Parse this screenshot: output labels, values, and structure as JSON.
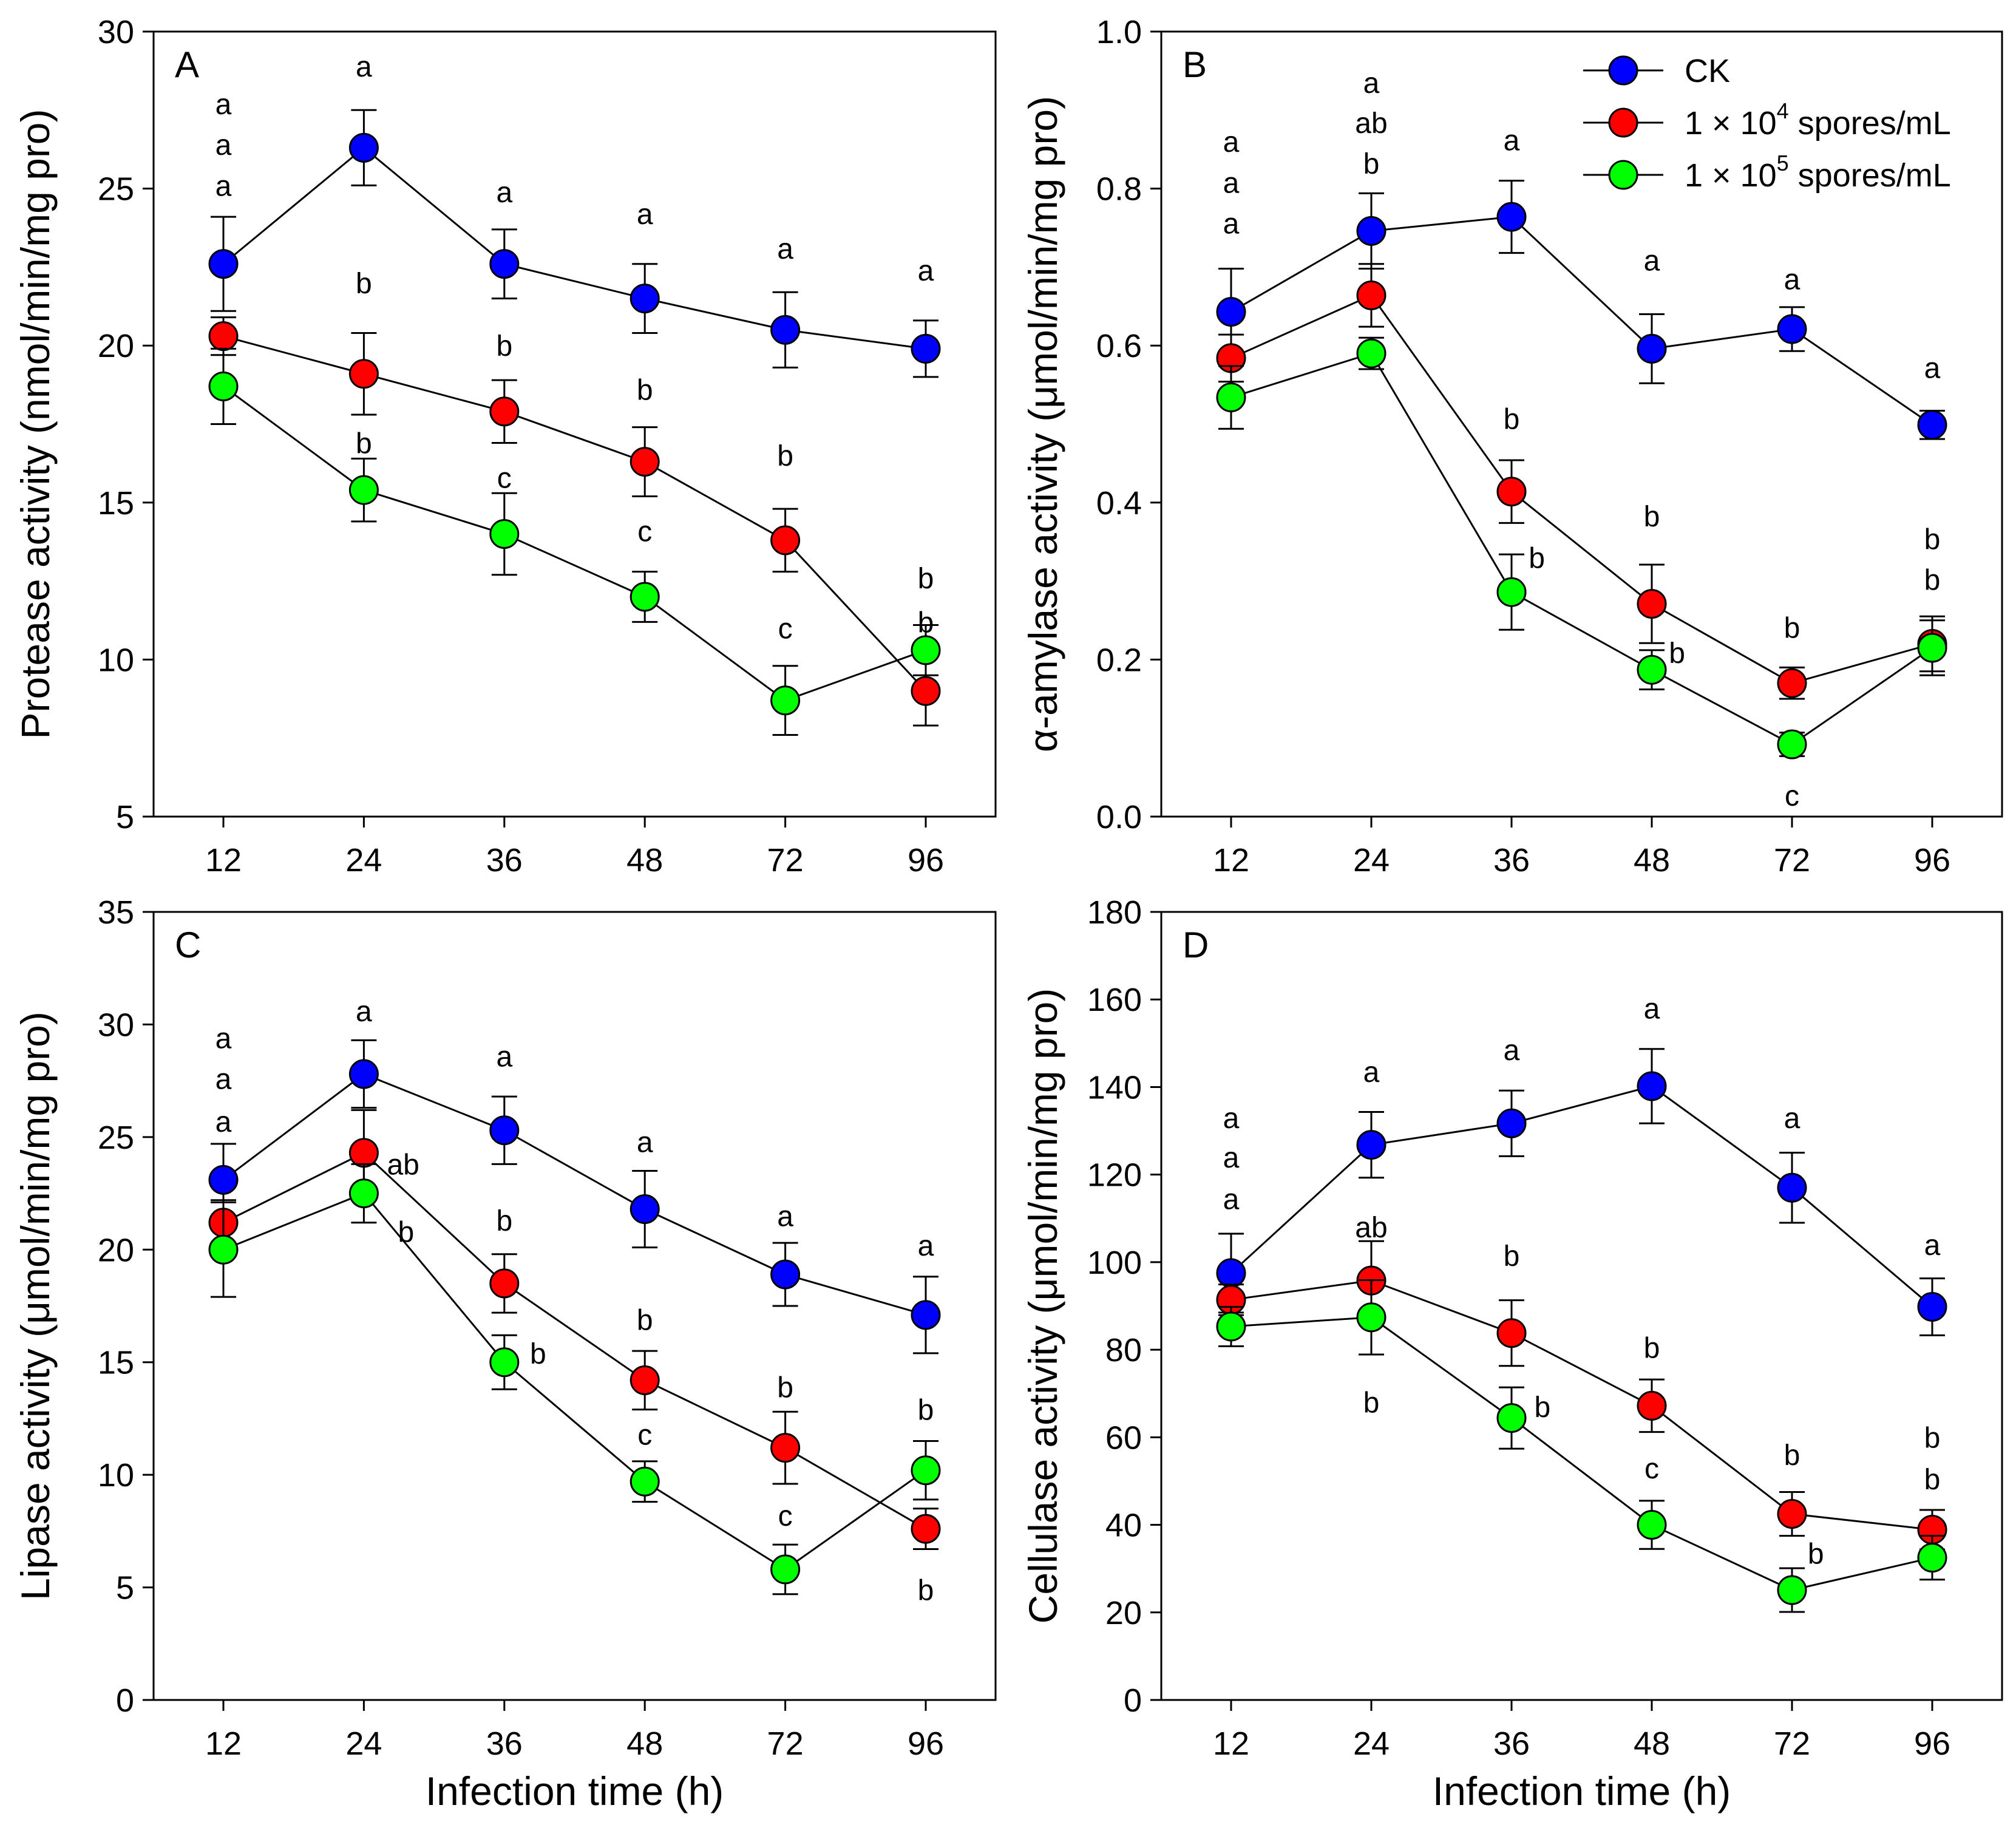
{
  "colors": {
    "ck": "#0000ff",
    "s4": "#ff0000",
    "s5": "#00ff00"
  },
  "legend": {
    "ck": "CK",
    "s4_prefix": "1 × 10",
    "s4_exp": "4",
    "s4_suffix": " spores/mL",
    "s5_prefix": "1 × 10",
    "s5_exp": "5",
    "s5_suffix": " spores/mL"
  },
  "chart_data": [
    {
      "panel": "A",
      "type": "line",
      "title": "",
      "categories": [
        "12",
        "24",
        "36",
        "48",
        "72",
        "96"
      ],
      "xlabel": "",
      "ylabel": "Protease activity (nmol/min/mg pro)",
      "ylim": [
        5,
        30
      ],
      "yticks": [
        5,
        10,
        15,
        20,
        25,
        30
      ],
      "grid": false,
      "series": [
        {
          "name": "CK",
          "key": "ck",
          "values": [
            22.6,
            26.3,
            22.6,
            21.5,
            20.5,
            19.9
          ],
          "errors": [
            1.5,
            1.2,
            1.1,
            1.1,
            1.2,
            0.9
          ]
        },
        {
          "name": "1 × 10^4 spores/mL",
          "key": "s4",
          "values": [
            20.3,
            19.1,
            17.9,
            16.3,
            13.8,
            9.0
          ],
          "errors": [
            0.6,
            1.3,
            1.0,
            1.1,
            1.0,
            1.1
          ]
        },
        {
          "name": "1 × 10^5 spores/mL",
          "key": "s5",
          "values": [
            18.7,
            15.4,
            14.0,
            12.0,
            8.7,
            10.3
          ],
          "errors": [
            1.2,
            1.0,
            1.3,
            0.8,
            1.1,
            0.8
          ]
        }
      ],
      "annotations": [
        {
          "text": "a",
          "x": 0,
          "y": 27.7
        },
        {
          "text": "a",
          "x": 0,
          "y": 26.4
        },
        {
          "text": "a",
          "x": 0,
          "y": 25.1
        },
        {
          "text": "a",
          "x": 1,
          "y": 28.9
        },
        {
          "text": "b",
          "x": 1,
          "y": 22.0
        },
        {
          "text": "b",
          "x": 1,
          "y": 16.9
        },
        {
          "text": "a",
          "x": 2,
          "y": 24.9
        },
        {
          "text": "b",
          "x": 2,
          "y": 20.0
        },
        {
          "text": "c",
          "x": 2,
          "y": 15.8
        },
        {
          "text": "a",
          "x": 3,
          "y": 24.2
        },
        {
          "text": "b",
          "x": 3,
          "y": 18.6
        },
        {
          "text": "c",
          "x": 3,
          "y": 14.1
        },
        {
          "text": "a",
          "x": 4,
          "y": 23.1
        },
        {
          "text": "b",
          "x": 4,
          "y": 16.5
        },
        {
          "text": "c",
          "x": 4,
          "y": 11.0
        },
        {
          "text": "a",
          "x": 5,
          "y": 22.4
        },
        {
          "text": "b",
          "x": 5,
          "y": 12.6
        },
        {
          "text": "b",
          "x": 5,
          "y": 11.2
        }
      ]
    },
    {
      "panel": "B",
      "type": "line",
      "title": "",
      "categories": [
        "12",
        "24",
        "36",
        "48",
        "72",
        "96"
      ],
      "xlabel": "",
      "ylabel": "α-amylase activity (μmol/min/mg pro)",
      "ylim": [
        0.0,
        1.0
      ],
      "yticks": [
        0.0,
        0.2,
        0.4,
        0.6,
        0.8,
        1.0
      ],
      "ytick_decimals": 1,
      "grid": false,
      "series": [
        {
          "name": "CK",
          "key": "ck",
          "values": [
            0.643,
            0.746,
            0.764,
            0.596,
            0.621,
            0.499
          ],
          "errors": [
            0.055,
            0.048,
            0.046,
            0.044,
            0.028,
            0.018
          ]
        },
        {
          "name": "1 × 10^4 spores/mL",
          "key": "s4",
          "values": [
            0.584,
            0.664,
            0.414,
            0.271,
            0.17,
            0.22
          ],
          "errors": [
            0.03,
            0.04,
            0.04,
            0.05,
            0.02,
            0.035
          ]
        },
        {
          "name": "1 × 10^5 spores/mL",
          "key": "s5",
          "values": [
            0.534,
            0.59,
            0.286,
            0.187,
            0.092,
            0.215
          ],
          "errors": [
            0.04,
            0.02,
            0.048,
            0.025,
            0.015,
            0.035
          ]
        }
      ],
      "annotations": [
        {
          "text": "a",
          "x": 0,
          "y": 0.86
        },
        {
          "text": "a",
          "x": 0,
          "y": 0.808
        },
        {
          "text": "a",
          "x": 0,
          "y": 0.756
        },
        {
          "text": "a",
          "x": 1,
          "y": 0.935
        },
        {
          "text": "ab",
          "x": 1,
          "y": 0.884
        },
        {
          "text": "b",
          "x": 1,
          "y": 0.832
        },
        {
          "text": "a",
          "x": 2,
          "y": 0.862
        },
        {
          "text": "a",
          "x": 3,
          "y": 0.709
        },
        {
          "text": "a",
          "x": 4,
          "y": 0.685
        },
        {
          "text": "a",
          "x": 5,
          "y": 0.572
        },
        {
          "text": "b",
          "x": 2,
          "y": 0.507
        },
        {
          "text": "b",
          "x": 2.18,
          "y": 0.33
        },
        {
          "text": "b",
          "x": 3,
          "y": 0.383
        },
        {
          "text": "b",
          "x": 3.18,
          "y": 0.209
        },
        {
          "text": "b",
          "x": 4,
          "y": 0.241
        },
        {
          "text": "c",
          "x": 4,
          "y": 0.027
        },
        {
          "text": "b",
          "x": 5,
          "y": 0.354
        },
        {
          "text": "b",
          "x": 5,
          "y": 0.302
        }
      ]
    },
    {
      "panel": "C",
      "type": "line",
      "title": "",
      "categories": [
        "12",
        "24",
        "36",
        "48",
        "72",
        "96"
      ],
      "xlabel": "Infection time (h)",
      "ylabel": "Lipase activity (μmol/min/mg pro)",
      "ylim": [
        0,
        35
      ],
      "yticks": [
        0,
        5,
        10,
        15,
        20,
        25,
        30,
        35
      ],
      "grid": false,
      "series": [
        {
          "name": "CK",
          "key": "ck",
          "values": [
            23.1,
            27.8,
            25.3,
            21.8,
            18.9,
            17.1
          ],
          "errors": [
            1.6,
            1.5,
            1.5,
            1.7,
            1.4,
            1.7
          ]
        },
        {
          "name": "1 × 10^4 spores/mL",
          "key": "s4",
          "values": [
            21.2,
            24.3,
            18.5,
            14.2,
            11.2,
            7.6
          ],
          "errors": [
            1.0,
            1.9,
            1.3,
            1.3,
            1.6,
            0.9
          ]
        },
        {
          "name": "1 × 10^5 spores/mL",
          "key": "s5",
          "values": [
            20.0,
            22.5,
            15.0,
            9.7,
            5.8,
            10.2
          ],
          "errors": [
            2.1,
            1.3,
            1.2,
            0.9,
            1.1,
            1.3
          ]
        }
      ],
      "annotations": [
        {
          "text": "a",
          "x": 0,
          "y": 29.4
        },
        {
          "text": "a",
          "x": 0,
          "y": 27.6
        },
        {
          "text": "a",
          "x": 0,
          "y": 25.7
        },
        {
          "text": "a",
          "x": 1,
          "y": 30.6
        },
        {
          "text": "ab",
          "x": 1.28,
          "y": 23.8
        },
        {
          "text": "b",
          "x": 1.3,
          "y": 20.8
        },
        {
          "text": "a",
          "x": 2,
          "y": 28.6
        },
        {
          "text": "b",
          "x": 2,
          "y": 21.3
        },
        {
          "text": "b",
          "x": 2.24,
          "y": 15.4
        },
        {
          "text": "a",
          "x": 3,
          "y": 24.8
        },
        {
          "text": "b",
          "x": 3,
          "y": 16.9
        },
        {
          "text": "c",
          "x": 3,
          "y": 11.8
        },
        {
          "text": "a",
          "x": 4,
          "y": 21.5
        },
        {
          "text": "b",
          "x": 4,
          "y": 13.9
        },
        {
          "text": "c",
          "x": 4,
          "y": 8.2
        },
        {
          "text": "a",
          "x": 5,
          "y": 20.2
        },
        {
          "text": "b",
          "x": 5,
          "y": 12.9
        },
        {
          "text": "b",
          "x": 5,
          "y": 4.9
        }
      ]
    },
    {
      "panel": "D",
      "type": "line",
      "title": "",
      "categories": [
        "12",
        "24",
        "36",
        "48",
        "72",
        "96"
      ],
      "xlabel": "Infection time (h)",
      "ylabel": "Cellulase activity (μmol/min/mg pro)",
      "ylim": [
        0,
        180
      ],
      "yticks": [
        0,
        20,
        40,
        60,
        80,
        100,
        120,
        140,
        160,
        180
      ],
      "grid": false,
      "series": [
        {
          "name": "CK",
          "key": "ck",
          "values": [
            97.5,
            126.8,
            131.7,
            140.2,
            117.0,
            89.8
          ],
          "errors": [
            9.0,
            7.5,
            7.5,
            8.5,
            8.0,
            6.5
          ]
        },
        {
          "name": "1 × 10^4 spores/mL",
          "key": "s4",
          "values": [
            91.4,
            95.8,
            83.8,
            67.2,
            42.5,
            38.9
          ],
          "errors": [
            3.5,
            9.0,
            7.5,
            6.0,
            5.0,
            4.5
          ]
        },
        {
          "name": "1 × 10^5 spores/mL",
          "key": "s5",
          "values": [
            85.3,
            87.4,
            64.4,
            40.0,
            25.1,
            32.5
          ],
          "errors": [
            4.5,
            8.5,
            7.0,
            5.5,
            5.0,
            5.0
          ]
        }
      ],
      "annotations": [
        {
          "text": "a",
          "x": 0,
          "y": 133.0
        },
        {
          "text": "a",
          "x": 0,
          "y": 124.0
        },
        {
          "text": "a",
          "x": 0,
          "y": 114.5
        },
        {
          "text": "a",
          "x": 1,
          "y": 143.5
        },
        {
          "text": "ab",
          "x": 1,
          "y": 108.0
        },
        {
          "text": "b",
          "x": 1,
          "y": 68.0
        },
        {
          "text": "a",
          "x": 2,
          "y": 148.5
        },
        {
          "text": "b",
          "x": 2,
          "y": 101.5
        },
        {
          "text": "b",
          "x": 2.22,
          "y": 67.0
        },
        {
          "text": "a",
          "x": 3,
          "y": 158.0
        },
        {
          "text": "b",
          "x": 3,
          "y": 80.5
        },
        {
          "text": "c",
          "x": 3,
          "y": 53.0
        },
        {
          "text": "a",
          "x": 4,
          "y": 133.0
        },
        {
          "text": "b",
          "x": 4,
          "y": 56.0
        },
        {
          "text": "b",
          "x": 4.17,
          "y": 33.5
        },
        {
          "text": "a",
          "x": 5,
          "y": 104.0
        },
        {
          "text": "b",
          "x": 5,
          "y": 60.0
        },
        {
          "text": "b",
          "x": 5,
          "y": 50.5
        }
      ]
    }
  ]
}
